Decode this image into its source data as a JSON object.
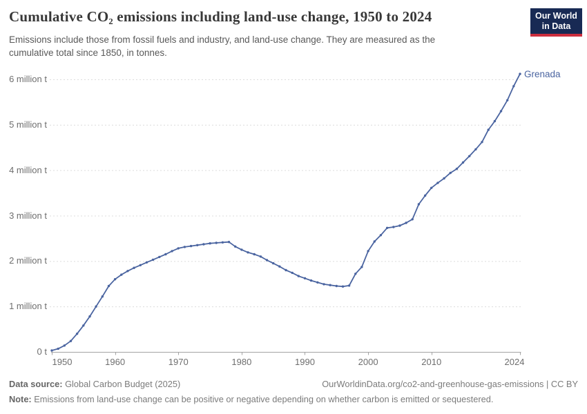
{
  "header": {
    "title": "Cumulative CO₂ emissions including land-use change, 1950 to 2024",
    "subtitle": "Emissions include those from fossil fuels and industry, and land-use change. They are measured as the cumulative total since 1850, in tonnes.",
    "logo": {
      "line1": "Our World",
      "line2": "in Data",
      "bg_color": "#182a54",
      "accent_color": "#cc2e3e"
    }
  },
  "chart_data": {
    "type": "line",
    "title": "Cumulative CO₂ emissions including land-use change, 1950 to 2024",
    "xlabel": "",
    "ylabel": "",
    "unit": "tonnes",
    "grid": "horizontal dashed",
    "legend_position": "end-of-line label",
    "xlim": [
      1950,
      2024
    ],
    "ylim": [
      0,
      6200000
    ],
    "xticks": [
      1950,
      1960,
      1970,
      1980,
      1990,
      2000,
      2010,
      2024
    ],
    "ytick_values": [
      0,
      1,
      2,
      3,
      4,
      5,
      6
    ],
    "ytick_labels": [
      "0 t",
      "1 million t",
      "2 million t",
      "3 million t",
      "4 million t",
      "5 million t",
      "6 million t"
    ],
    "years": [
      1950,
      1951,
      1952,
      1953,
      1954,
      1955,
      1956,
      1957,
      1958,
      1959,
      1960,
      1961,
      1962,
      1963,
      1964,
      1965,
      1966,
      1967,
      1968,
      1969,
      1970,
      1971,
      1972,
      1973,
      1974,
      1975,
      1976,
      1977,
      1978,
      1979,
      1980,
      1981,
      1982,
      1983,
      1984,
      1985,
      1986,
      1987,
      1988,
      1989,
      1990,
      1991,
      1992,
      1993,
      1994,
      1995,
      1996,
      1997,
      1998,
      1999,
      2000,
      2001,
      2002,
      2003,
      2004,
      2005,
      2006,
      2007,
      2008,
      2009,
      2010,
      2011,
      2012,
      2013,
      2014,
      2015,
      2016,
      2017,
      2018,
      2019,
      2020,
      2021,
      2022,
      2023,
      2024
    ],
    "series": [
      {
        "name": "Grenada",
        "color": "#4a64a0",
        "units": "million tonnes",
        "values": [
          0.03,
          0.07,
          0.14,
          0.24,
          0.4,
          0.58,
          0.78,
          1.0,
          1.22,
          1.45,
          1.6,
          1.7,
          1.78,
          1.85,
          1.91,
          1.97,
          2.03,
          2.09,
          2.15,
          2.22,
          2.28,
          2.31,
          2.33,
          2.35,
          2.37,
          2.39,
          2.4,
          2.41,
          2.42,
          2.32,
          2.25,
          2.19,
          2.15,
          2.1,
          2.02,
          1.95,
          1.88,
          1.8,
          1.74,
          1.67,
          1.62,
          1.57,
          1.53,
          1.49,
          1.47,
          1.45,
          1.44,
          1.46,
          1.72,
          1.87,
          2.22,
          2.43,
          2.57,
          2.73,
          2.75,
          2.78,
          2.84,
          2.92,
          3.25,
          3.44,
          3.61,
          3.72,
          3.82,
          3.94,
          4.03,
          4.17,
          4.31,
          4.46,
          4.62,
          4.89,
          5.08,
          5.3,
          5.54,
          5.85,
          6.12
        ]
      }
    ],
    "colors": {
      "gridline": "#dcdcdc",
      "axis": "#a3a3a3",
      "tick_label": "#6e6e6e"
    }
  },
  "footer": {
    "source_label": "Data source:",
    "source_text": " Global Carbon Budget (2025)",
    "link_text": "OurWorldinData.org/co2-and-greenhouse-gas-emissions | CC BY",
    "note_label": "Note:",
    "note_text": " Emissions from land-use change can be positive or negative depending on whether carbon is emitted or sequestered."
  }
}
